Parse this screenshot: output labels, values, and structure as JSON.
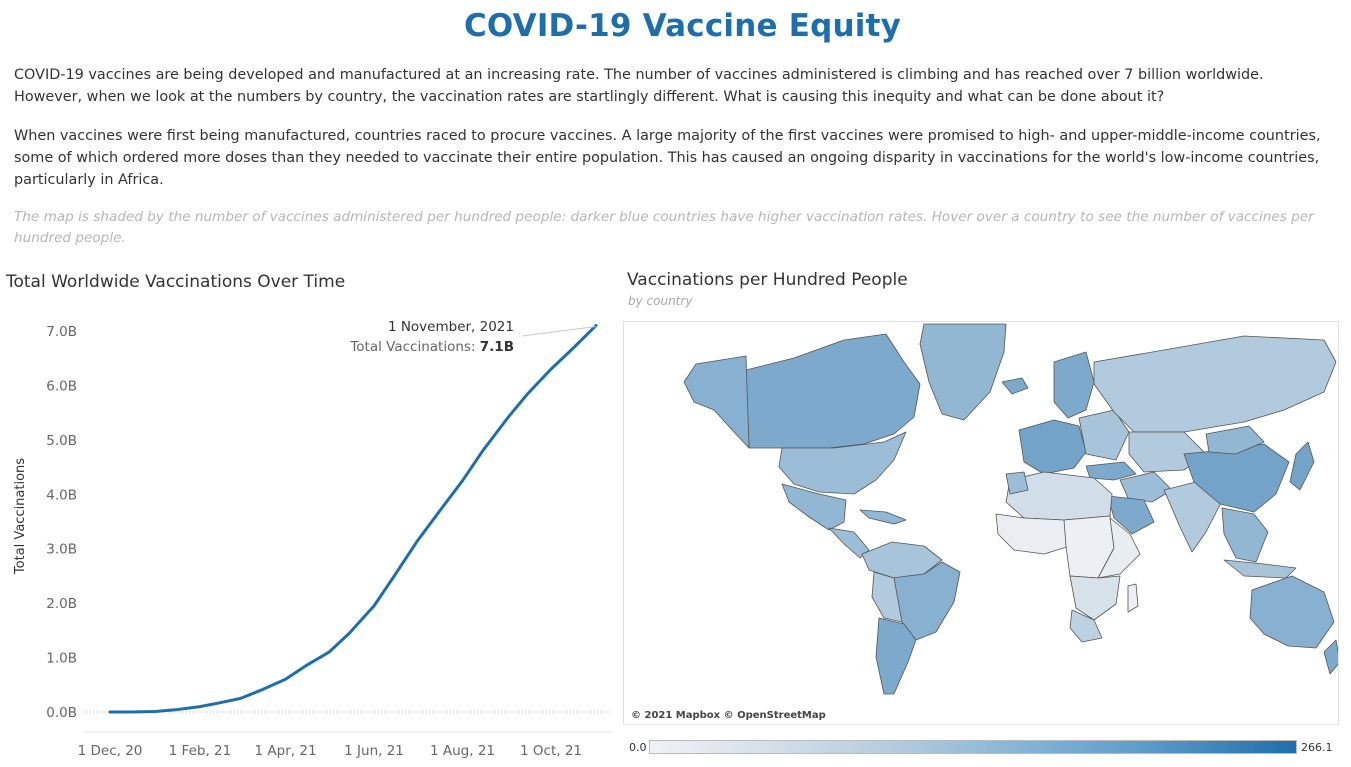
{
  "page": {
    "title": "COVID-19 Vaccine Equity",
    "paragraph1": "COVID-19 vaccines are being developed and manufactured at an increasing rate. The number of vaccines administered is climbing and has reached over 7 billion worldwide. However, when we look at the numbers by country, the vaccination rates are startlingly different. What is causing this inequity and what can be done about it?",
    "paragraph2": "When vaccines were first being manufactured, countries raced to procure vaccines. A large majority of the first vaccines were promised to high- and upper-middle-income countries, some of which ordered more doses than they needed to vaccinate their entire population. This has caused an ongoing disparity in vaccinations for the world's low-income countries, particularly in Africa.",
    "note": "The map is shaded by the number of vaccines administered per hundred people: darker blue countries have higher vaccination rates. Hover over a country to see the number of vaccines per hundred people."
  },
  "chart_data": [
    {
      "type": "line",
      "title": "Total Worldwide Vaccinations Over Time",
      "xlabel": "",
      "ylabel": "Total Vaccinations",
      "x_ticks": [
        "1 Dec, 20",
        "1 Feb, 21",
        "1 Apr, 21",
        "1 Jun, 21",
        "1 Aug, 21",
        "1 Oct, 21"
      ],
      "y_ticks": [
        "0.0B",
        "1.0B",
        "2.0B",
        "3.0B",
        "4.0B",
        "5.0B",
        "6.0B",
        "7.0B"
      ],
      "ylim": [
        0,
        7.3
      ],
      "y_unit": "billions",
      "series": [
        {
          "color": "#1f6eab",
          "x": [
            "2020-12-01",
            "2020-12-15",
            "2021-01-01",
            "2021-01-15",
            "2021-02-01",
            "2021-02-15",
            "2021-03-01",
            "2021-03-15",
            "2021-04-01",
            "2021-04-15",
            "2021-05-01",
            "2021-05-15",
            "2021-06-01",
            "2021-06-15",
            "2021-07-01",
            "2021-07-15",
            "2021-08-01",
            "2021-08-15",
            "2021-09-01",
            "2021-09-15",
            "2021-10-01",
            "2021-10-15",
            "2021-11-01"
          ],
          "values": [
            0.0,
            0.0,
            0.01,
            0.04,
            0.1,
            0.17,
            0.25,
            0.4,
            0.6,
            0.85,
            1.1,
            1.45,
            1.95,
            2.5,
            3.15,
            3.65,
            4.25,
            4.8,
            5.4,
            5.85,
            6.3,
            6.65,
            7.1
          ]
        }
      ],
      "annotation": {
        "date": "1 November, 2021",
        "label": "Total Vaccinations:",
        "value": "7.1B"
      },
      "grid": false,
      "baseline": "dotted"
    },
    {
      "type": "choropleth",
      "title": "Vaccinations per Hundred People",
      "subtitle": "by country",
      "legend": {
        "min": "0.0",
        "max": "266.1",
        "placement": "bottom"
      },
      "credit": "© 2021 Mapbox © OpenStreetMap",
      "color_scale": [
        "#f0f2f4",
        "#1f6eab"
      ],
      "regions": [
        {
          "region": "Greenland",
          "level": 0.45
        },
        {
          "region": "Canada",
          "level": 0.55
        },
        {
          "region": "Alaska",
          "level": 0.5
        },
        {
          "region": "United States",
          "level": 0.4
        },
        {
          "region": "Mexico",
          "level": 0.45
        },
        {
          "region": "Central America",
          "level": 0.4
        },
        {
          "region": "Caribbean",
          "level": 0.45
        },
        {
          "region": "South America North",
          "level": 0.35
        },
        {
          "region": "Brazil",
          "level": 0.5
        },
        {
          "region": "Bolivia",
          "level": 0.3
        },
        {
          "region": "Southern Cone",
          "level": 0.55
        },
        {
          "region": "Iceland",
          "level": 0.55
        },
        {
          "region": "Scandinavia",
          "level": 0.55
        },
        {
          "region": "Western Europe",
          "level": 0.6
        },
        {
          "region": "Eastern Europe",
          "level": 0.35
        },
        {
          "region": "Russia",
          "level": 0.3
        },
        {
          "region": "Turkey",
          "level": 0.55
        },
        {
          "region": "Middle East",
          "level": 0.4
        },
        {
          "region": "Arabian Peninsula",
          "level": 0.55
        },
        {
          "region": "Central Asia",
          "level": 0.3
        },
        {
          "region": "South Asia",
          "level": 0.3
        },
        {
          "region": "China",
          "level": 0.6
        },
        {
          "region": "Mongolia",
          "level": 0.45
        },
        {
          "region": "Japan",
          "level": 0.6
        },
        {
          "region": "Southeast Asia",
          "level": 0.45
        },
        {
          "region": "Indonesia",
          "level": 0.35
        },
        {
          "region": "Australia",
          "level": 0.5
        },
        {
          "region": "New Zealand",
          "level": 0.55
        },
        {
          "region": "North Africa",
          "level": 0.15
        },
        {
          "region": "Morocco",
          "level": 0.4
        },
        {
          "region": "West Africa",
          "level": 0.03
        },
        {
          "region": "Central Africa",
          "level": 0.02
        },
        {
          "region": "East Africa",
          "level": 0.04
        },
        {
          "region": "Southern Africa",
          "level": 0.12
        },
        {
          "region": "South Africa",
          "level": 0.25
        },
        {
          "region": "Madagascar",
          "level": 0.02
        }
      ]
    }
  ]
}
